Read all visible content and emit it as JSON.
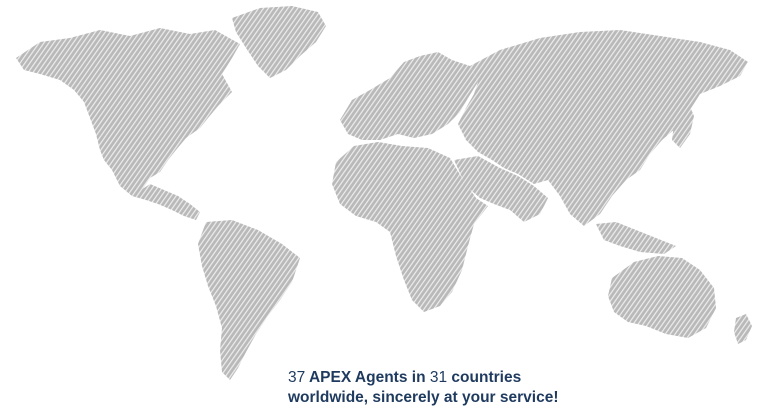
{
  "map": {
    "land_color": "#b9b9b9",
    "stripe_color": "#ffffff",
    "regions": [
      "north-america",
      "greenland",
      "south-america",
      "europe",
      "africa",
      "asia",
      "australia",
      "new-zealand"
    ]
  },
  "caption": {
    "agents_count": "37",
    "agents_text": "APEX Agents in",
    "countries_count": "31",
    "countries_text": "countries",
    "line2": "worldwide, sincerely at your service!"
  }
}
